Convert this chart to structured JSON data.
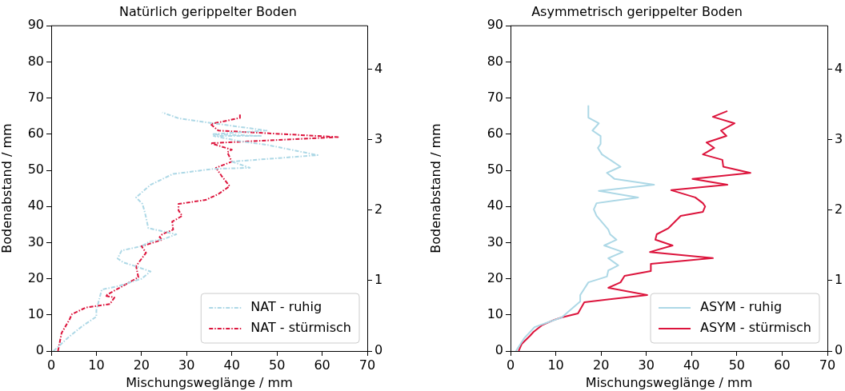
{
  "chart_data": [
    {
      "type": "line",
      "title": "Natürlich gerippelter Boden",
      "xlabel": "Mischungsweglänge / mm",
      "ylabel": "Bodenabstand / mm",
      "xlim": [
        0,
        70
      ],
      "xticks": [
        0,
        10,
        20,
        30,
        40,
        50,
        60,
        70
      ],
      "ylim": [
        0,
        90
      ],
      "yticks": [
        0,
        10,
        20,
        30,
        40,
        50,
        60,
        70,
        80,
        90
      ],
      "y2lim": [
        0,
        4.615
      ],
      "y2ticks": [
        0,
        1,
        2,
        3,
        4
      ],
      "grid": false,
      "legend": "bottom right",
      "line_style": "dashed",
      "marker": "none",
      "series": [
        {
          "name": "NAT - ruhig",
          "color": "#add8e6",
          "x": [
            0.5,
            4,
            7,
            10,
            10,
            11.2,
            15,
            20,
            22,
            18.8,
            16,
            14.7,
            15.6,
            20,
            21.8,
            25,
            27.7,
            21.5,
            21,
            20.6,
            20.2,
            18.8,
            22,
            27,
            36,
            44,
            40,
            59,
            48,
            42,
            36,
            46.6,
            35.6,
            47.7,
            36,
            28.2,
            24.6
          ],
          "values": [
            0,
            4,
            7,
            9.5,
            11.3,
            17,
            18,
            20,
            22,
            23.4,
            24.5,
            25.6,
            27.8,
            29,
            30.3,
            31,
            32.3,
            34,
            37,
            39,
            40.7,
            42.5,
            46,
            49,
            50.4,
            50.7,
            52.4,
            54.2,
            57,
            58,
            59.5,
            59.5,
            60,
            61,
            63,
            64.4,
            66
          ]
        },
        {
          "name": "NAT - stürmisch",
          "color": "#dc143c",
          "x": [
            1.5,
            2.3,
            4,
            4.6,
            7.6,
            13,
            14,
            12,
            19.3,
            18.8,
            21,
            20,
            24.6,
            24,
            24.6,
            27,
            26.8,
            29,
            28.2,
            28.2,
            34.2,
            37,
            39.5,
            37.7,
            36.5,
            40,
            39,
            40,
            35.3,
            63.5,
            37,
            35.3,
            41.8,
            41.8
          ],
          "values": [
            0,
            5,
            8.6,
            10.2,
            12,
            13,
            14.8,
            15.3,
            20.4,
            23.5,
            27.2,
            29,
            30.8,
            31.5,
            32.3,
            33.6,
            35.8,
            37.4,
            38.9,
            40.7,
            41.8,
            43.4,
            45.6,
            48.5,
            50.7,
            52.4,
            55,
            55.7,
            57.5,
            59.2,
            61,
            62.8,
            64.5,
            65.7
          ]
        }
      ]
    },
    {
      "type": "line",
      "title": "Asymmetrisch gerippelter Boden",
      "xlabel": "Mischungsweglänge / mm",
      "ylabel": "Bodenabstand / mm",
      "xlim": [
        0,
        70
      ],
      "xticks": [
        0,
        10,
        20,
        30,
        40,
        50,
        60,
        70
      ],
      "ylim": [
        0,
        90
      ],
      "yticks": [
        0,
        10,
        20,
        30,
        40,
        50,
        60,
        70,
        80,
        90
      ],
      "y2lim": [
        0,
        4.615
      ],
      "y2ticks": [
        0,
        1,
        2,
        3,
        4
      ],
      "grid": false,
      "legend": "bottom right",
      "line_style": "solid",
      "marker": "none",
      "series": [
        {
          "name": "ASYM - ruhig",
          "color": "#add8e6",
          "x": [
            1.2,
            3,
            5.3,
            11.3,
            15.4,
            15.4,
            17.2,
            21.3,
            21.6,
            23.8,
            21.6,
            24.8,
            20.7,
            23.4,
            22,
            21.6,
            19,
            18.4,
            19,
            28.2,
            19.5,
            31.7,
            23,
            21.3,
            24.3,
            20.2,
            19.3,
            19.9,
            19.9,
            18.1,
            19.5,
            17.2,
            17.2
          ],
          "values": [
            0,
            3.5,
            6.6,
            9.3,
            13.7,
            15.5,
            19,
            20.6,
            22.3,
            23.7,
            25.7,
            27.4,
            29.2,
            30.8,
            32.3,
            33.6,
            37.4,
            39.2,
            40.9,
            42.5,
            44.3,
            46,
            47.6,
            49.3,
            51,
            54.4,
            56.2,
            57.3,
            59.5,
            61,
            63,
            64.6,
            68
          ]
        },
        {
          "name": "ASYM - stürmisch",
          "color": "#dc143c",
          "x": [
            1.8,
            2.5,
            4.3,
            5.1,
            6.9,
            9.6,
            11.3,
            14.9,
            16.3,
            30.2,
            21.6,
            24.3,
            25.2,
            31,
            31,
            44.7,
            30.8,
            35.8,
            32,
            32.3,
            34.9,
            37.6,
            42.5,
            43,
            42.5,
            40.8,
            35.5,
            47.9,
            40.2,
            53,
            47,
            46.8,
            42.5,
            45,
            43.3,
            47.7,
            46.5,
            49.5,
            44.7,
            47.9
          ],
          "values": [
            0,
            2,
            4.2,
            5.3,
            7.1,
            8.6,
            9.3,
            10.4,
            13.5,
            15.5,
            17.5,
            19,
            20.8,
            22.1,
            24.1,
            25.7,
            27.4,
            29.2,
            30.8,
            32.3,
            34,
            37.4,
            38.5,
            40,
            40.9,
            42.5,
            44.5,
            46,
            47.6,
            49.3,
            51,
            52.9,
            54.4,
            56.2,
            57.7,
            59.5,
            61,
            63,
            64.8,
            66.4
          ]
        }
      ]
    }
  ]
}
